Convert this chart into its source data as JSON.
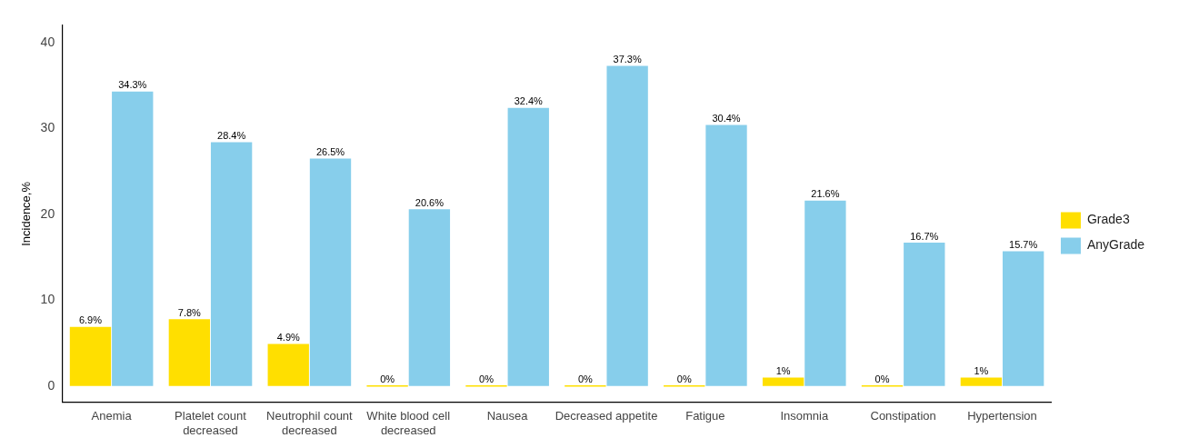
{
  "chart_data": {
    "type": "bar",
    "ylabel": "Incidence,%",
    "categories": [
      "Anemia",
      "Platelet count decreased",
      "Neutrophil count decreased",
      "White blood cell decreased",
      "Nausea",
      "Decreased appetite",
      "Fatigue",
      "Insomnia",
      "Constipation",
      "Hypertension"
    ],
    "series": [
      {
        "name": "Grade3",
        "color": "#ffdf00",
        "values": [
          6.9,
          7.8,
          4.9,
          0,
          0,
          0,
          0,
          1,
          0,
          1
        ],
        "value_labels": [
          "6.9%",
          "7.8%",
          "4.9%",
          "0%",
          "0%",
          "0%",
          "0%",
          "1%",
          "0%",
          "1%"
        ]
      },
      {
        "name": "AnyGrade",
        "color": "#87ceeb",
        "values": [
          34.3,
          28.4,
          26.5,
          20.6,
          32.4,
          37.3,
          30.4,
          21.6,
          16.7,
          15.7
        ],
        "value_labels": [
          "34.3%",
          "28.4%",
          "26.5%",
          "20.6%",
          "32.4%",
          "37.3%",
          "30.4%",
          "21.6%",
          "16.7%",
          "15.7%"
        ]
      }
    ],
    "ylim": [
      -1.9,
      42
    ],
    "yticks": [
      0,
      10,
      20,
      30,
      40
    ],
    "grid": false,
    "legend": "right"
  }
}
